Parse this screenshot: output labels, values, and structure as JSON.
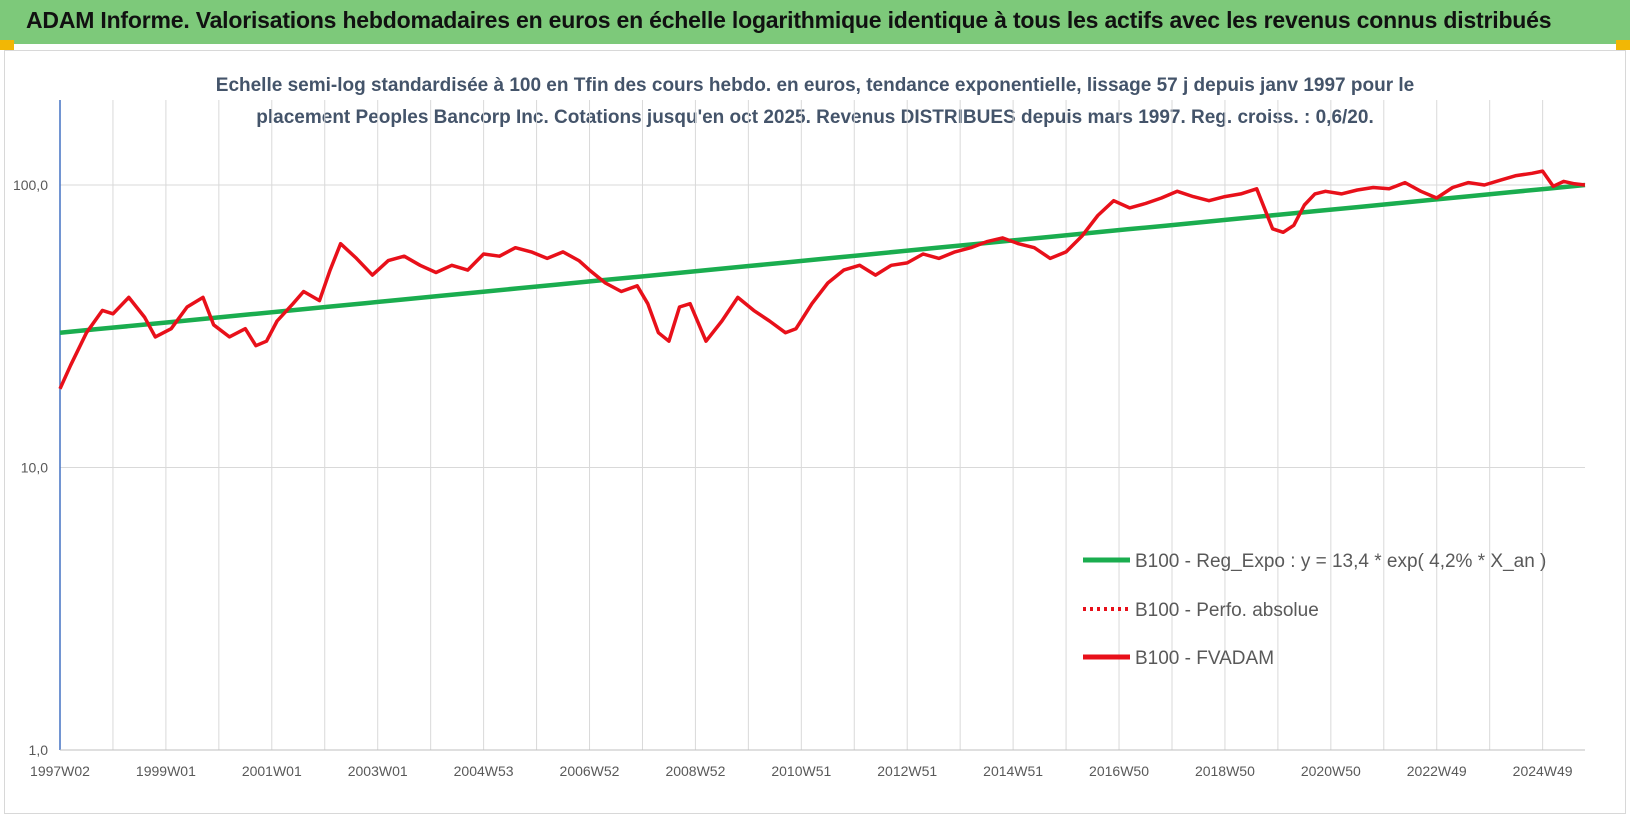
{
  "header": {
    "title": "ADAM Informe. Valorisations hebdomadaires en euros en échelle logarithmique identique à tous les actifs avec les revenus connus distribués"
  },
  "colors": {
    "header_bg": "#7dc97a",
    "trend": "#1aad4f",
    "fvadam": "#e8101a",
    "perf": "#e8101a",
    "grid": "#d9d9d9",
    "axis": "#4472c4"
  },
  "chart_data": {
    "type": "line",
    "title_line1": "Echelle semi-log standardisée à 100 en Tfin des cours hebdo. en euros, tendance exponentielle, lissage 57 j depuis janv 1997 pour le",
    "title_line2": "placement Peoples Bancorp Inc. Cotations jusqu'en oct 2025. Revenus DISTRIBUES depuis mars 1997. Reg. croiss. : 0,6/20.",
    "y_scale": "log",
    "ylim": [
      1,
      200
    ],
    "y_ticks": [
      {
        "value": 1,
        "label": "1,0"
      },
      {
        "value": 10,
        "label": "10,0"
      },
      {
        "value": 100,
        "label": "100,0"
      }
    ],
    "xlim": [
      1997.0,
      2025.8
    ],
    "x_ticks": [
      {
        "value": 1997.0,
        "label": "1997W02"
      },
      {
        "value": 1999.0,
        "label": "1999W01"
      },
      {
        "value": 2001.0,
        "label": "2001W01"
      },
      {
        "value": 2003.0,
        "label": "2003W01"
      },
      {
        "value": 2005.0,
        "label": "2004W53"
      },
      {
        "value": 2007.0,
        "label": "2006W52"
      },
      {
        "value": 2009.0,
        "label": "2008W52"
      },
      {
        "value": 2011.0,
        "label": "2010W51"
      },
      {
        "value": 2013.0,
        "label": "2012W51"
      },
      {
        "value": 2015.0,
        "label": "2014W51"
      },
      {
        "value": 2017.0,
        "label": "2016W50"
      },
      {
        "value": 2019.0,
        "label": "2018W50"
      },
      {
        "value": 2021.0,
        "label": "2020W50"
      },
      {
        "value": 2023.0,
        "label": "2022W49"
      },
      {
        "value": 2025.0,
        "label": "2024W49"
      }
    ],
    "x_gridlines": [
      1997.0,
      1998.0,
      1999.0,
      2000.0,
      2001.0,
      2002.0,
      2003.0,
      2004.0,
      2005.0,
      2006.0,
      2007.0,
      2008.0,
      2009.0,
      2010.0,
      2011.0,
      2012.0,
      2013.0,
      2014.0,
      2015.0,
      2016.0,
      2017.0,
      2018.0,
      2019.0,
      2020.0,
      2021.0,
      2022.0,
      2023.0,
      2024.0,
      2025.0
    ],
    "series": [
      {
        "name": "B100 - Reg_Expo : y = 13,4 * exp( 4,2% *  X_an )",
        "style": "solid-green",
        "x": [
          1997.0,
          2025.8
        ],
        "values": [
          30,
          100
        ]
      },
      {
        "name": "B100 - Perfo. absolue",
        "style": "dotted-red",
        "x": [],
        "values": []
      },
      {
        "name": "B100 - FVADAM",
        "style": "solid-red",
        "x": [
          1997.0,
          1997.2,
          1997.5,
          1997.8,
          1998.0,
          1998.3,
          1998.6,
          1998.8,
          1999.1,
          1999.4,
          1999.7,
          1999.9,
          2000.2,
          2000.5,
          2000.7,
          2000.9,
          2001.1,
          2001.4,
          2001.6,
          2001.9,
          2002.1,
          2002.3,
          2002.6,
          2002.9,
          2003.2,
          2003.5,
          2003.8,
          2004.1,
          2004.4,
          2004.7,
          2005.0,
          2005.3,
          2005.6,
          2005.9,
          2006.2,
          2006.5,
          2006.8,
          2007.0,
          2007.3,
          2007.6,
          2007.9,
          2008.1,
          2008.3,
          2008.5,
          2008.7,
          2008.9,
          2009.2,
          2009.5,
          2009.8,
          2010.1,
          2010.4,
          2010.7,
          2010.9,
          2011.2,
          2011.5,
          2011.8,
          2012.1,
          2012.4,
          2012.7,
          2013.0,
          2013.3,
          2013.6,
          2013.9,
          2014.2,
          2014.5,
          2014.8,
          2015.1,
          2015.4,
          2015.7,
          2016.0,
          2016.3,
          2016.6,
          2016.9,
          2017.2,
          2017.5,
          2017.8,
          2018.1,
          2018.4,
          2018.7,
          2019.0,
          2019.3,
          2019.6,
          2019.9,
          2020.1,
          2020.3,
          2020.5,
          2020.7,
          2020.9,
          2021.2,
          2021.5,
          2021.8,
          2022.1,
          2022.4,
          2022.7,
          2023.0,
          2023.3,
          2023.6,
          2023.9,
          2024.2,
          2024.5,
          2024.8,
          2025.0,
          2025.2,
          2025.4,
          2025.6,
          2025.8
        ],
        "values": [
          19,
          23,
          30,
          36,
          35,
          40,
          34,
          29,
          31,
          37,
          40,
          32,
          29,
          31,
          27,
          28,
          33,
          38,
          42,
          39,
          50,
          62,
          55,
          48,
          54,
          56,
          52,
          49,
          52,
          50,
          57,
          56,
          60,
          58,
          55,
          58,
          54,
          50,
          45,
          42,
          44,
          38,
          30,
          28,
          37,
          38,
          28,
          33,
          40,
          36,
          33,
          30,
          31,
          38,
          45,
          50,
          52,
          48,
          52,
          53,
          57,
          55,
          58,
          60,
          63,
          65,
          62,
          60,
          55,
          58,
          66,
          78,
          88,
          83,
          86,
          90,
          95,
          91,
          88,
          91,
          93,
          97,
          70,
          68,
          72,
          85,
          93,
          95,
          93,
          96,
          98,
          97,
          102,
          95,
          90,
          98,
          102,
          100,
          104,
          108,
          110,
          112,
          99,
          103,
          101,
          100
        ]
      }
    ]
  }
}
